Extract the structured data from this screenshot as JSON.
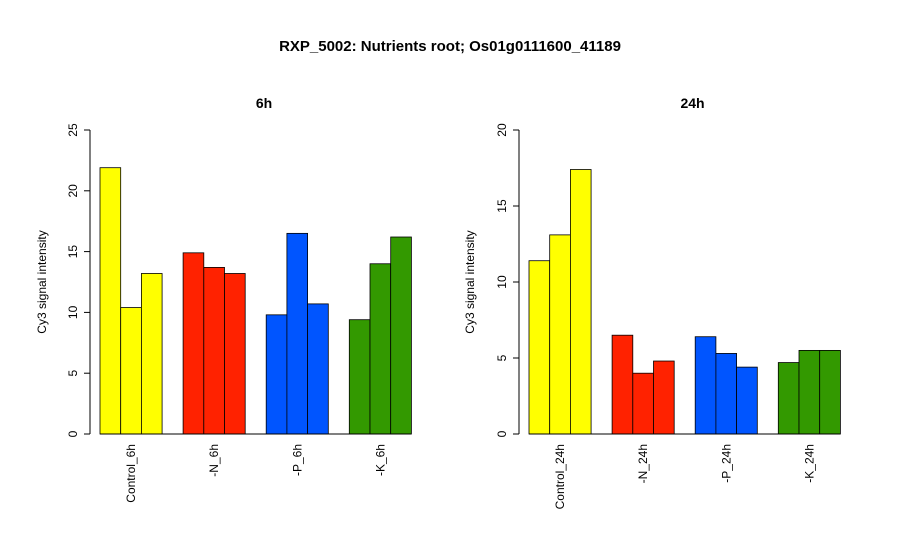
{
  "title": "RXP_5002: Nutrients root; Os01g0111600_41189",
  "chart_data": [
    {
      "type": "bar",
      "title": "6h",
      "ylabel": "Cy3 signal intensity",
      "ylim": [
        0,
        25
      ],
      "yticks": [
        0,
        5,
        10,
        15,
        20,
        25
      ],
      "categories": [
        "Control_6h",
        "-N_6h",
        "-P_6h",
        "-K_6h"
      ],
      "colors": [
        "#ffff00",
        "#ff2200",
        "#0055ff",
        "#339900"
      ],
      "values": [
        [
          21.9,
          10.4,
          13.2
        ],
        [
          14.9,
          13.7,
          13.2
        ],
        [
          9.8,
          16.5,
          10.7
        ],
        [
          9.4,
          14.0,
          16.2
        ]
      ]
    },
    {
      "type": "bar",
      "title": "24h",
      "ylabel": "Cy3 signal intensity",
      "ylim": [
        0,
        20
      ],
      "yticks": [
        0,
        5,
        10,
        15,
        20
      ],
      "categories": [
        "Control_24h",
        "-N_24h",
        "-P_24h",
        "-K_24h"
      ],
      "colors": [
        "#ffff00",
        "#ff2200",
        "#0055ff",
        "#339900"
      ],
      "values": [
        [
          11.4,
          13.1,
          17.4
        ],
        [
          6.5,
          4.0,
          4.8
        ],
        [
          6.4,
          5.3,
          4.4
        ],
        [
          4.7,
          5.5,
          5.5
        ]
      ]
    }
  ]
}
